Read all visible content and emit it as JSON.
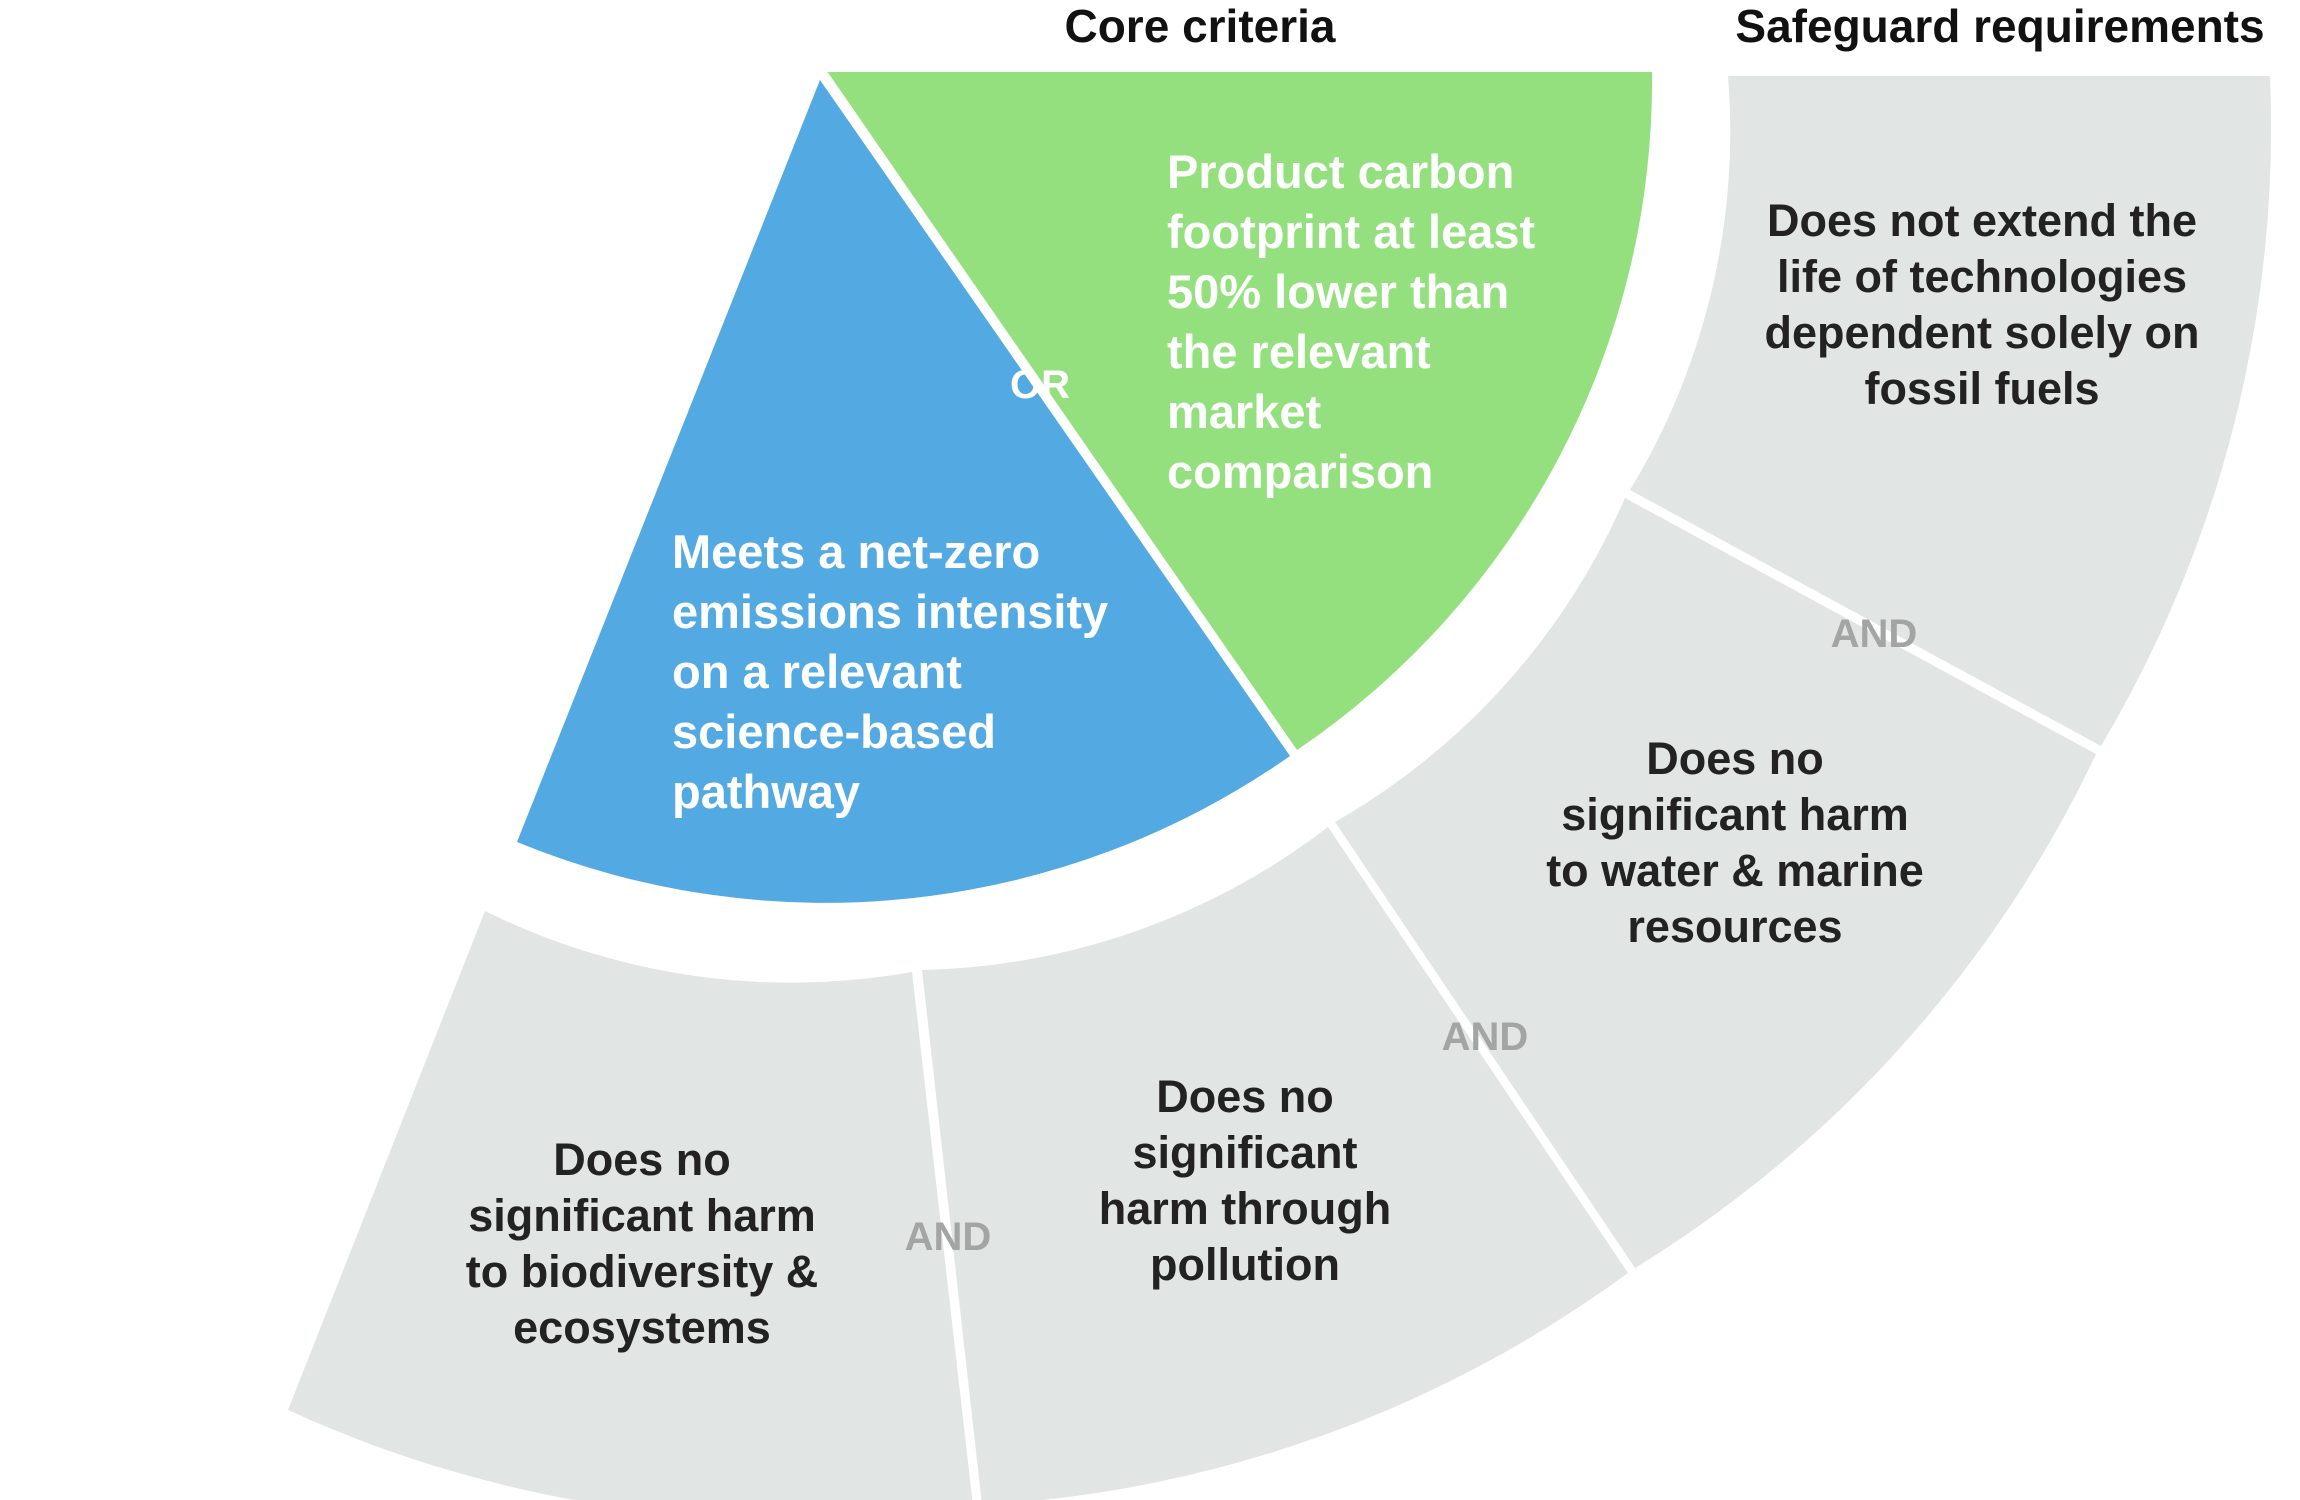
{
  "colors": {
    "net_zero_segment": "#53a9e1",
    "carbon_footprint_segment": "#94e07e",
    "safeguard_segment": "#e1e5e3",
    "divider": "#ffffff",
    "and_label": "#a3a5a4",
    "or_label": "#ffffff"
  },
  "headings": {
    "core": "Core criteria",
    "safeguard": "Safeguard requirements"
  },
  "core_criteria": {
    "net_zero": {
      "lines": [
        "Meets a net-zero",
        "emissions intensity",
        "on a relevant",
        "science-based",
        "pathway"
      ]
    },
    "carbon_footprint": {
      "lines": [
        "Product carbon",
        "footprint at least",
        "50% lower than",
        "the relevant",
        "market",
        "comparison"
      ]
    },
    "connector": "OR"
  },
  "safeguards": {
    "fossil": {
      "lines": [
        "Does not extend the",
        "life of technologies",
        "dependent solely on",
        "fossil fuels"
      ]
    },
    "water": {
      "lines": [
        "Does no",
        "significant harm",
        "to water & marine",
        "resources"
      ]
    },
    "pollution": {
      "lines": [
        "Does no",
        "significant",
        "harm through",
        "pollution"
      ]
    },
    "biodiversity": {
      "lines": [
        "Does no",
        "significant harm",
        "to biodiversity &",
        "ecosystems"
      ]
    },
    "connectors": [
      "AND",
      "AND",
      "AND"
    ]
  }
}
